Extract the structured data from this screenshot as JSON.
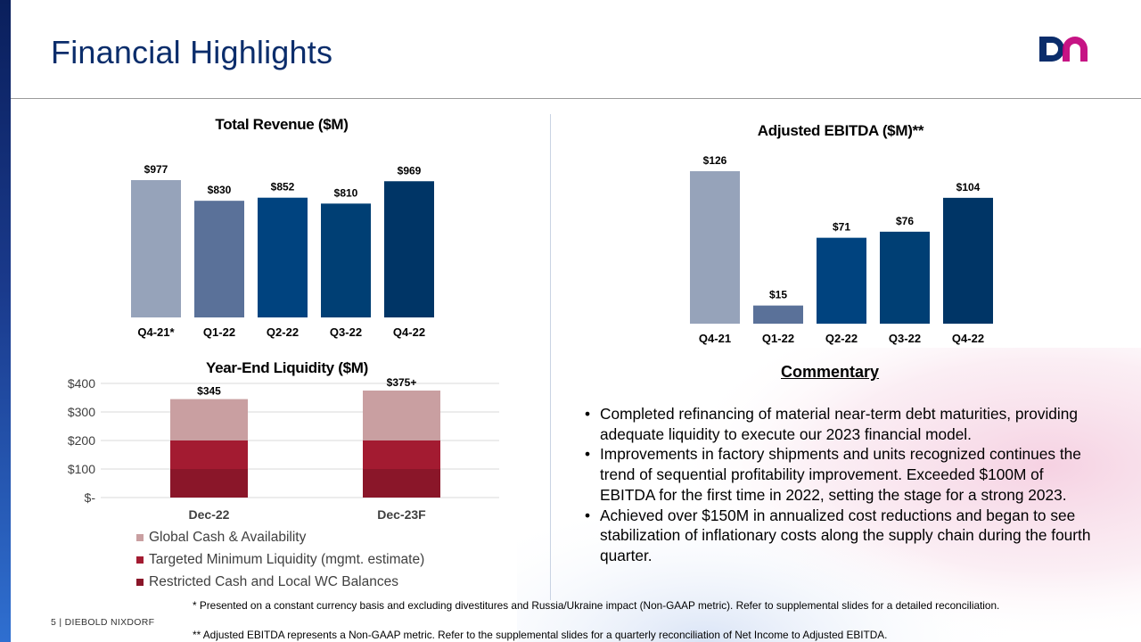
{
  "slide": {
    "title": "Financial Highlights",
    "page_number": "5",
    "company": "DIEBOLD NIXDORF",
    "commentary_title": "Commentary",
    "commentary": [
      "Completed refinancing of material near-term debt maturities, providing adequate liquidity to execute our 2023 financial model.",
      "Improvements in factory shipments and units recognized continues the trend of sequential profitability improvement. Exceeded $100M of EBITDA for the first time in 2022, setting the stage for a strong 2023.",
      "Achieved over $150M in annualized cost reductions and began to see stabilization of inflationary costs along the supply chain during the fourth quarter."
    ],
    "footnotes": [
      "* Presented on a constant currency basis and excluding divestitures and Russia/Ukraine impact (Non-GAAP metric). Refer to supplemental slides for a detailed reconciliation.",
      "** Adjusted EBITDA represents a Non-GAAP metric.  Refer to the supplemental slides for a quarterly reconciliation of Net Income to Adjusted EBITDA."
    ]
  },
  "colors": {
    "title": "#0b2d6b",
    "bar_q4_21": "#96a3ba",
    "bar_q1_22": "#5a7199",
    "bar_q2_22": "#00437f",
    "bar_q3_22": "#003f74",
    "bar_q4_22": "#003566",
    "liq_global": "#c99fa1",
    "liq_target": "#a31b31",
    "liq_restricted": "#8a1629",
    "logo_left": "#0b2d6b",
    "logo_right": "#c1007a"
  },
  "chart_data": [
    {
      "type": "bar",
      "title": "Total Revenue ($M)",
      "categories": [
        "Q4-21*",
        "Q1-22",
        "Q2-22",
        "Q3-22",
        "Q4-22"
      ],
      "values": [
        977,
        830,
        852,
        810,
        969
      ],
      "data_labels": [
        "$977",
        "$830",
        "$852",
        "$810",
        "$969"
      ],
      "ylim": [
        0,
        1000
      ],
      "grid": false,
      "legend": "none"
    },
    {
      "type": "bar",
      "title": "Adjusted EBITDA ($M)**",
      "categories": [
        "Q4-21",
        "Q1-22",
        "Q2-22",
        "Q3-22",
        "Q4-22"
      ],
      "values": [
        126,
        15,
        71,
        76,
        104
      ],
      "data_labels": [
        "$126",
        "$15",
        "$71",
        "$76",
        "$104"
      ],
      "ylim": [
        0,
        130
      ],
      "grid": false,
      "legend": "none"
    },
    {
      "type": "bar",
      "stacked": true,
      "title": "Year-End Liquidity ($M)",
      "categories": [
        "Dec-22",
        "Dec-23F"
      ],
      "series": [
        {
          "name": "Restricted Cash and Local WC Balances",
          "values": [
            100,
            100
          ]
        },
        {
          "name": "Targeted Minimum Liquidity (mgmt. estimate)",
          "values": [
            100,
            100
          ]
        },
        {
          "name": "Global Cash & Availability",
          "values": [
            145,
            175
          ]
        }
      ],
      "totals": [
        345,
        375
      ],
      "total_labels": [
        "$345",
        "$375+"
      ],
      "y_ticks": [
        "$-",
        "$100",
        "$200",
        "$300",
        "$400"
      ],
      "ylim": [
        0,
        400
      ],
      "grid": true,
      "legend": "bottom-left"
    }
  ]
}
